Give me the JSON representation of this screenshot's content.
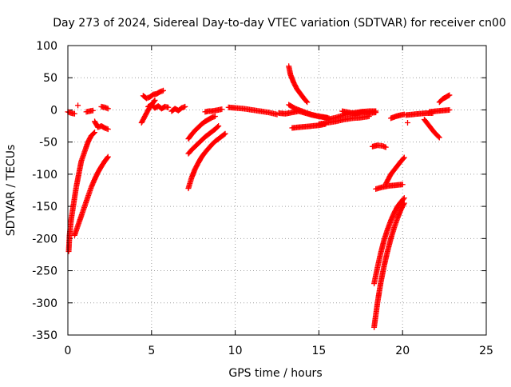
{
  "chart_data": {
    "type": "scatter",
    "title": "Day 273 of 2024, Sidereal Day-to-day VTEC variation (SDTVAR) for receiver cn00",
    "xlabel": "GPS time / hours",
    "ylabel": "SDTVAR / TECUs",
    "xlim": [
      0,
      25
    ],
    "ylim": [
      -350,
      100
    ],
    "xticks": [
      0,
      5,
      10,
      15,
      20,
      25
    ],
    "yticks": [
      100,
      50,
      0,
      -50,
      -100,
      -150,
      -200,
      -250,
      -300,
      -350
    ],
    "grid": true,
    "marker": "plus",
    "color": "#ff0000",
    "segments": [
      {
        "x": [
          0.0,
          0.2,
          0.4
        ],
        "y": [
          -3,
          -5,
          -6
        ]
      },
      {
        "x": [
          0.05,
          0.1,
          0.2,
          0.35,
          0.5,
          0.65,
          0.8,
          1.0,
          1.2,
          1.4,
          1.6
        ],
        "y": [
          -220,
          -195,
          -170,
          -145,
          -120,
          -100,
          -80,
          -65,
          -50,
          -40,
          -35
        ]
      },
      {
        "x": [
          0.4,
          0.6,
          0.8,
          1.0,
          1.2,
          1.4,
          1.6,
          1.8,
          2.0,
          2.2,
          2.4
        ],
        "y": [
          -195,
          -180,
          -165,
          -150,
          -135,
          -120,
          -108,
          -97,
          -88,
          -80,
          -73
        ]
      },
      {
        "x": [
          0.6
        ],
        "y": [
          7
        ]
      },
      {
        "x": [
          1.1,
          1.3,
          1.5
        ],
        "y": [
          -3,
          -2,
          -1
        ]
      },
      {
        "x": [
          1.6,
          1.8,
          2.0,
          2.2,
          2.4
        ],
        "y": [
          -18,
          -27,
          -25,
          -28,
          -30
        ]
      },
      {
        "x": [
          2.0,
          2.2,
          2.4
        ],
        "y": [
          5,
          4,
          2
        ]
      },
      {
        "x": [
          4.4,
          4.6,
          4.8,
          5.0,
          5.2
        ],
        "y": [
          -20,
          -10,
          0,
          8,
          15
        ]
      },
      {
        "x": [
          4.5,
          4.7,
          4.9,
          5.1,
          5.3,
          5.5,
          5.7
        ],
        "y": [
          22,
          18,
          20,
          24,
          25,
          28,
          30
        ]
      },
      {
        "x": [
          4.8,
          5.0,
          5.2,
          5.4,
          5.6,
          5.8,
          6.0
        ],
        "y": [
          5,
          8,
          3,
          6,
          2,
          5,
          4
        ]
      },
      {
        "x": [
          6.2,
          6.4,
          6.6,
          6.8,
          7.0
        ],
        "y": [
          -2,
          2,
          -1,
          3,
          5
        ]
      },
      {
        "x": [
          7.2,
          7.4,
          7.6,
          7.8,
          8.0,
          8.2,
          8.4,
          8.6,
          8.8
        ],
        "y": [
          -45,
          -38,
          -32,
          -27,
          -22,
          -18,
          -15,
          -12,
          -10
        ]
      },
      {
        "x": [
          7.2,
          7.4,
          7.6,
          7.8,
          8.0,
          8.2,
          8.4,
          8.6,
          8.8,
          9.0
        ],
        "y": [
          -68,
          -62,
          -57,
          -52,
          -47,
          -42,
          -38,
          -34,
          -30,
          -25
        ]
      },
      {
        "x": [
          7.2,
          7.4,
          7.6,
          7.8,
          8.0,
          8.2,
          8.4,
          8.6,
          8.8,
          9.0,
          9.2,
          9.4
        ],
        "y": [
          -122,
          -105,
          -92,
          -82,
          -73,
          -66,
          -60,
          -54,
          -49,
          -45,
          -41,
          -37
        ]
      },
      {
        "x": [
          8.2,
          8.4,
          8.6,
          8.8,
          9.0,
          9.2
        ],
        "y": [
          -3,
          -2,
          -2,
          -1,
          0,
          1
        ]
      },
      {
        "x": [
          9.6,
          10.0,
          10.5,
          11.0,
          11.5,
          12.0,
          12.5
        ],
        "y": [
          4,
          3,
          2,
          0,
          -2,
          -4,
          -7
        ]
      },
      {
        "x": [
          13.2,
          13.3,
          13.5,
          13.7,
          13.9,
          14.1,
          14.3
        ],
        "y": [
          68,
          55,
          42,
          32,
          25,
          18,
          12
        ]
      },
      {
        "x": [
          12.6,
          13.0,
          13.4,
          13.8,
          14.2,
          14.6,
          15.0,
          15.5
        ],
        "y": [
          -5,
          -6,
          -4,
          -2,
          -5,
          -8,
          -10,
          -12
        ]
      },
      {
        "x": [
          13.4,
          13.8,
          14.2,
          14.6,
          15.0,
          15.4
        ],
        "y": [
          -28,
          -27,
          -26,
          -25,
          -24,
          -22
        ]
      },
      {
        "x": [
          13.2,
          13.6,
          14.0,
          14.4,
          14.8,
          15.2,
          15.6
        ],
        "y": [
          8,
          2,
          -2,
          -6,
          -9,
          -11,
          -13
        ]
      },
      {
        "x": [
          15.5,
          16.0,
          16.5,
          17.0,
          17.5,
          18.0,
          18.4
        ],
        "y": [
          -15,
          -12,
          -8,
          -5,
          -3,
          -2,
          -2
        ]
      },
      {
        "x": [
          16.4,
          16.8,
          17.2,
          17.6,
          18.0,
          18.4
        ],
        "y": [
          -2,
          -4,
          -6,
          -3,
          -5,
          -4
        ]
      },
      {
        "x": [
          15.0,
          15.5,
          16.0,
          16.5,
          17.0,
          17.5,
          18.0
        ],
        "y": [
          -22,
          -20,
          -18,
          -15,
          -13,
          -12,
          -10
        ]
      },
      {
        "x": [
          18.3,
          18.5,
          18.7,
          18.9,
          19.1,
          19.3,
          19.5,
          19.7,
          19.9,
          20.1
        ],
        "y": [
          -270,
          -245,
          -222,
          -202,
          -186,
          -172,
          -160,
          -150,
          -143,
          -137
        ]
      },
      {
        "x": [
          18.3,
          18.5,
          18.7,
          18.9,
          19.1,
          19.3,
          19.5,
          19.7,
          19.9,
          20.1
        ],
        "y": [
          -338,
          -300,
          -268,
          -242,
          -220,
          -200,
          -183,
          -168,
          -155,
          -145
        ]
      },
      {
        "x": [
          18.4,
          18.8,
          19.2,
          19.6,
          20.0
        ],
        "y": [
          -123,
          -120,
          -118,
          -117,
          -116
        ]
      },
      {
        "x": [
          19.0,
          19.3,
          19.6,
          19.9,
          20.1
        ],
        "y": [
          -115,
          -100,
          -90,
          -80,
          -74
        ]
      },
      {
        "x": [
          18.2,
          18.5,
          18.8,
          19.0
        ],
        "y": [
          -57,
          -55,
          -56,
          -58
        ]
      },
      {
        "x": [
          19.3,
          19.6,
          19.9,
          20.1
        ],
        "y": [
          -13,
          -10,
          -8,
          -7
        ]
      },
      {
        "x": [
          20.2,
          20.6,
          21.0,
          21.4,
          21.8
        ],
        "y": [
          -8,
          -7,
          -6,
          -5,
          -5
        ]
      },
      {
        "x": [
          20.3
        ],
        "y": [
          -20
        ]
      },
      {
        "x": [
          21.3,
          21.6,
          21.9,
          22.2
        ],
        "y": [
          -15,
          -25,
          -35,
          -43
        ]
      },
      {
        "x": [
          21.6,
          22.0,
          22.4,
          22.8
        ],
        "y": [
          -3,
          -2,
          -1,
          0
        ]
      },
      {
        "x": [
          22.2,
          22.4,
          22.6,
          22.8
        ],
        "y": [
          12,
          17,
          20,
          23
        ]
      }
    ]
  }
}
